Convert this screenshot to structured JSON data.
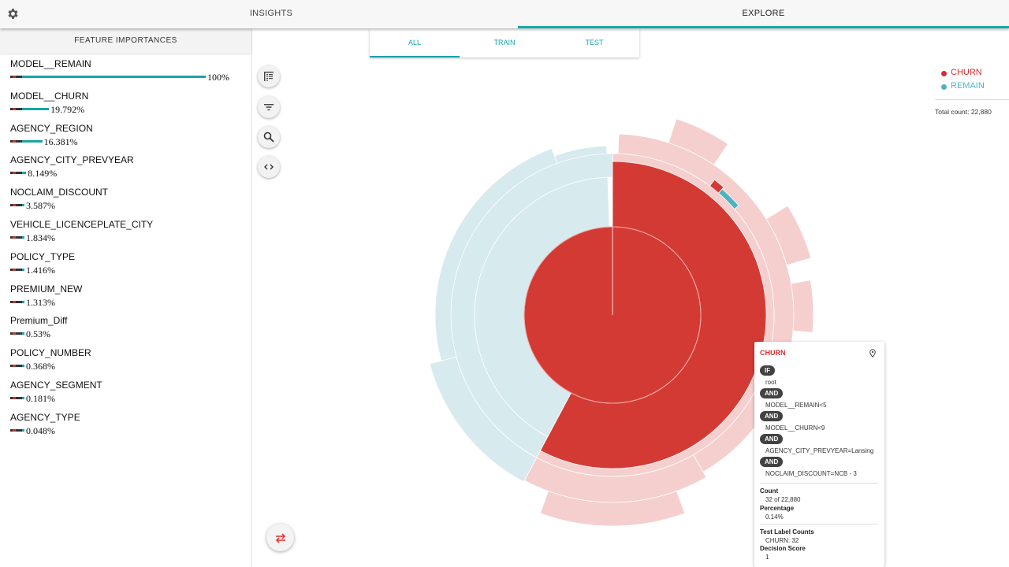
{
  "topbar": {
    "settings_icon": "gear-icon",
    "tabs": [
      {
        "label": "INSIGHTS",
        "active": false
      },
      {
        "label": "EXPLORE",
        "active": true
      }
    ],
    "accent": "#19a8a8"
  },
  "sidebar": {
    "header": "FEATURE IMPORTANCES",
    "features": [
      {
        "name": "MODEL__REMAIN",
        "value": "100%",
        "fraction": 1.0
      },
      {
        "name": "MODEL__CHURN",
        "value": "19.792%",
        "fraction": 0.19792
      },
      {
        "name": "AGENCY_REGION",
        "value": "16.381%",
        "fraction": 0.16381
      },
      {
        "name": "AGENCY_CITY_PREVYEAR",
        "value": "8.149%",
        "fraction": 0.08149
      },
      {
        "name": "NOCLAIM_DISCOUNT",
        "value": "3.587%",
        "fraction": 0.03587
      },
      {
        "name": "VEHICLE_LICENCEPLATE_CITY",
        "value": "1.834%",
        "fraction": 0.01834
      },
      {
        "name": "POLICY_TYPE",
        "value": "1.416%",
        "fraction": 0.01416
      },
      {
        "name": "PREMIUM_NEW",
        "value": "1.313%",
        "fraction": 0.01313
      },
      {
        "name": "Premium_Diff",
        "value": "0.53%",
        "fraction": 0.0053
      },
      {
        "name": "POLICY_NUMBER",
        "value": "0.368%",
        "fraction": 0.00368
      },
      {
        "name": "AGENCY_SEGMENT",
        "value": "0.181%",
        "fraction": 0.00181
      },
      {
        "name": "AGENCY_TYPE",
        "value": "0.048%",
        "fraction": 0.00048
      }
    ]
  },
  "subtabs": [
    {
      "label": "ALL",
      "active": true
    },
    {
      "label": "TRAIN",
      "active": false
    },
    {
      "label": "TEST",
      "active": false
    }
  ],
  "tools": [
    "list-icon",
    "filter-icon",
    "search-icon",
    "code-icon"
  ],
  "swap_icon": "swap-icon",
  "legend": [
    {
      "label": "CHURN",
      "color": "#d32f2f"
    },
    {
      "label": "REMAIN",
      "color": "#4fb3bf"
    }
  ],
  "total_count": "Total count: 22,880",
  "colors": {
    "churn": "#d43a34",
    "churn_light": "#f5cfce",
    "remain": "#4fb3bf",
    "remain_light": "#d7eaee"
  },
  "tooltip": {
    "title": "CHURN",
    "pin_icon": "pin-icon",
    "rules": [
      {
        "op": "IF",
        "text": "root"
      },
      {
        "op": "AND",
        "text": "MODEL__REMAIN<5"
      },
      {
        "op": "AND",
        "text": "MODEL__CHURN<9"
      },
      {
        "op": "AND",
        "text": "AGENCY_CITY_PREVYEAR=Lansing"
      },
      {
        "op": "AND",
        "text": "NOCLAIM_DISCOUNT=NCB - 3"
      }
    ],
    "count_label": "Count",
    "count_value": "32 of 22,880",
    "percentage_label": "Percentage",
    "percentage_value": "0.14%",
    "test_counts_label": "Test Label Counts",
    "test_counts_value": "CHURN: 32",
    "decision_label": "Decision Score",
    "decision_value": "1"
  }
}
